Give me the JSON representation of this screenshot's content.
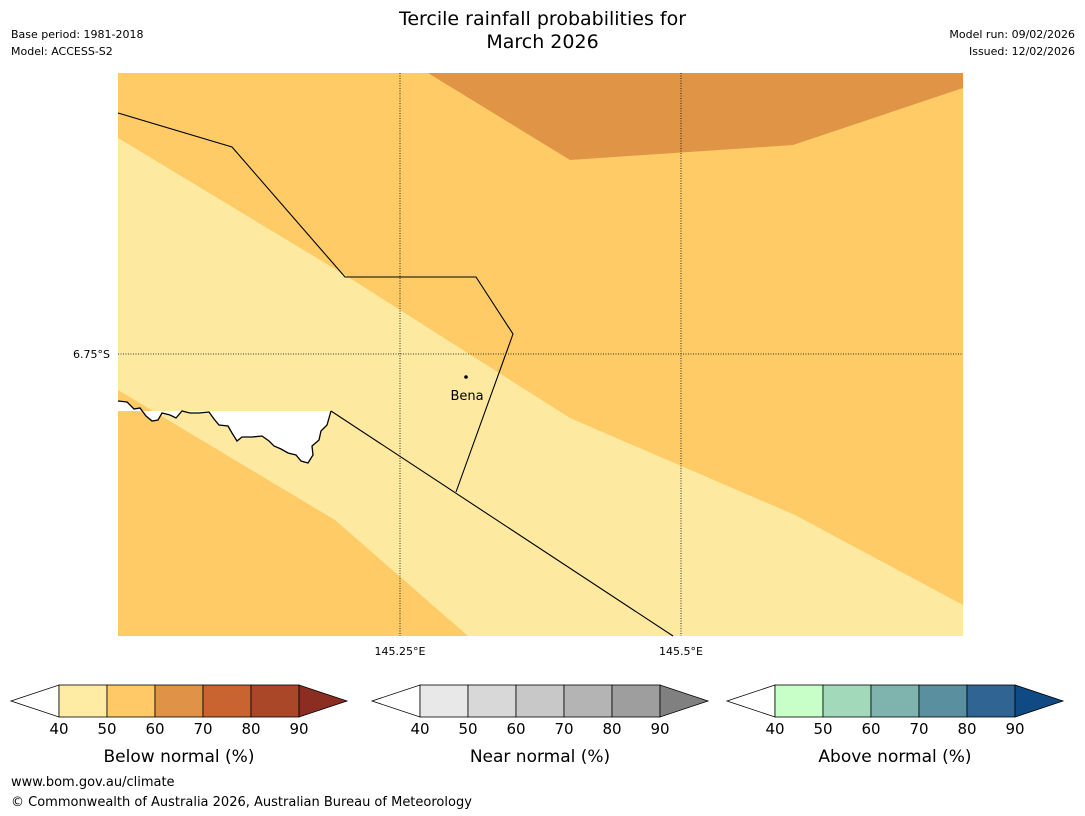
{
  "title_line1": "Tercile rainfall probabilities for",
  "title_line2": "March 2026",
  "base_period": "Base period: 1981-2018",
  "model": "Model: ACCESS-S2",
  "model_run": "Model run: 09/02/2026",
  "issued": "Issued: 12/02/2026",
  "map": {
    "place_label": "Bena",
    "lat_label": "6.75°S",
    "lon_labels": [
      "145.25°E",
      "145.5°E"
    ],
    "zone_colors": {
      "light": "#fdeaa0",
      "medium": "#fecb66",
      "dark": "#e09546"
    }
  },
  "legends": [
    {
      "label": "Below normal (%)",
      "ticks": [
        "40",
        "50",
        "60",
        "70",
        "80",
        "90"
      ],
      "colors": [
        "#ffffff",
        "#feeca4",
        "#fec966",
        "#e09246",
        "#c9632f",
        "#aa4729",
        "#8b2d20"
      ]
    },
    {
      "label": "Near normal (%)",
      "ticks": [
        "40",
        "50",
        "60",
        "70",
        "80",
        "90"
      ],
      "colors": [
        "#ffffff",
        "#e8e8e8",
        "#d8d8d8",
        "#c8c8c8",
        "#b4b4b4",
        "#9e9e9e",
        "#808080"
      ]
    },
    {
      "label": "Above normal (%)",
      "ticks": [
        "40",
        "50",
        "60",
        "70",
        "80",
        "90"
      ],
      "colors": [
        "#ffffff",
        "#c8fec8",
        "#a3d9bb",
        "#7fb3ae",
        "#5a8f9f",
        "#306492",
        "#0f4a84"
      ]
    }
  ],
  "footer_url": "www.bom.gov.au/climate",
  "footer_copyright": "© Commonwealth of Australia 2026, Australian Bureau of Meteorology"
}
